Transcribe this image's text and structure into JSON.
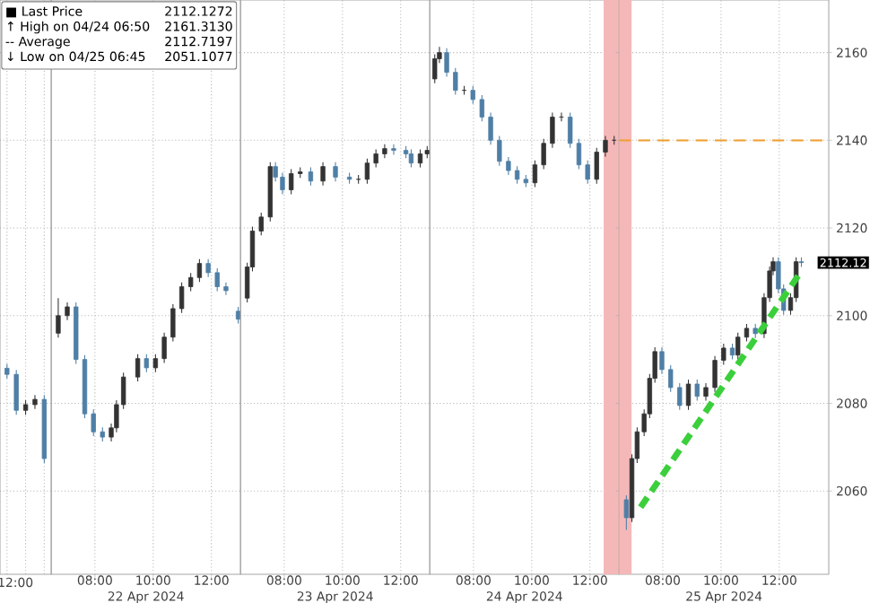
{
  "chart_data": [
    {
      "type": "candlestick",
      "categories": [
        null,
        null,
        null,
        null,
        null
      ],
      "ohlc": [
        [
          2088,
          2089,
          2085.6,
          2086.6
        ],
        [
          2086.6,
          2087.6,
          2077.4,
          2078.4
        ],
        [
          2078.4,
          2080.7,
          2077.4,
          2079.7
        ],
        [
          2079.7,
          2081.9,
          2078.7,
          2080.9
        ],
        [
          2080.9,
          2081.9,
          2066.4,
          2067.4
        ]
      ],
      "colors": [
        "#4f7fa6",
        "#4f7fa6",
        "#333333",
        "#333333",
        "#4f7fa6"
      ],
      "ylim": [
        2041,
        2172
      ],
      "yticks": [
        2060,
        2080,
        2100,
        2120,
        2140,
        2160
      ],
      "tick_labels": false,
      "grid": true,
      "annotations": [
        "12:00",
        "■ Last Price",
        "2112.1272",
        "↑ High on 04/24 06:50",
        "2161.3130",
        "-- Average",
        "2112.7197",
        "↓ Low on 04/25 06:45",
        "2051.1077"
      ]
    },
    {
      "type": "candlestick",
      "xlabel": "22 Apr 2024",
      "x": [
        6.74,
        7.05,
        7.35,
        7.65,
        7.95,
        8.26,
        8.56,
        8.74,
        8.98,
        9.47,
        9.77,
        10.08,
        10.38,
        10.68,
        10.98,
        11.29,
        11.59,
        11.89,
        12.2,
        12.5,
        12.92
      ],
      "ohlc": [
        [
          2096,
          2104,
          2095,
          2100
        ],
        [
          2100,
          2103,
          2099,
          2102
        ],
        [
          2102,
          2103,
          2089,
          2090
        ],
        [
          2090,
          2091,
          2076.6,
          2077.6
        ],
        [
          2077.6,
          2078.6,
          2072.5,
          2073.5
        ],
        [
          2073.5,
          2074.5,
          2071.3,
          2072.3
        ],
        [
          2072.3,
          2075.4,
          2071.3,
          2074.4
        ],
        [
          2074.4,
          2080.7,
          2073.4,
          2079.7
        ],
        [
          2079.7,
          2087,
          2078.7,
          2086
        ],
        [
          2086,
          2091.2,
          2085,
          2090.2
        ],
        [
          2090.2,
          2091.2,
          2087.1,
          2088.1
        ],
        [
          2088.1,
          2091.2,
          2087.1,
          2090.2
        ],
        [
          2090.2,
          2096.1,
          2089.2,
          2095.1
        ],
        [
          2095.1,
          2102.6,
          2094.1,
          2101.6
        ],
        [
          2101.6,
          2107.6,
          2100.6,
          2106.6
        ],
        [
          2106.6,
          2109.7,
          2105.6,
          2108.7
        ],
        [
          2108.7,
          2112.9,
          2107.7,
          2111.9
        ],
        [
          2111.9,
          2112.9,
          2108.8,
          2109.8
        ],
        [
          2109.8,
          2110.8,
          2105.6,
          2106.6
        ],
        [
          2106.6,
          2107.6,
          2104.7,
          2105.7
        ],
        [
          2101,
          2102,
          2098.2,
          2099.2
        ]
      ],
      "colors": [
        "#333333",
        "#333333",
        "#4f7fa6",
        "#4f7fa6",
        "#4f7fa6",
        "#4f7fa6",
        "#333333",
        "#333333",
        "#333333",
        "#333333",
        "#4f7fa6",
        "#333333",
        "#333333",
        "#333333",
        "#333333",
        "#333333",
        "#333333",
        "#4f7fa6",
        "#4f7fa6",
        "#4f7fa6",
        "#4f7fa6"
      ],
      "xlim": [
        6.5,
        13
      ],
      "ylim": [
        2041,
        2172
      ],
      "xticks": [
        {
          "value": 8,
          "label": "08:00"
        },
        {
          "value": 10,
          "label": "10:00"
        },
        {
          "value": 12,
          "label": "12:00"
        }
      ],
      "yticks": [
        2060,
        2080,
        2100,
        2120,
        2140,
        2160
      ],
      "tick_labels": "x",
      "grid": true
    },
    {
      "type": "candlestick",
      "xlabel": "23 Apr 2024",
      "x": [
        6.73,
        6.91,
        7.21,
        7.52,
        7.7,
        7.94,
        8.24,
        8.55,
        8.91,
        9.33,
        9.76,
        10.24,
        10.55,
        10.85,
        11.15,
        11.45,
        11.76,
        12.18,
        12.36,
        12.67,
        12.91
      ],
      "ohlc": [
        [
          2104,
          2112.1,
          2103,
          2111.1
        ],
        [
          2111.1,
          2120.3,
          2110.1,
          2119.3
        ],
        [
          2119.3,
          2123.5,
          2118.3,
          2122.5
        ],
        [
          2122.5,
          2135,
          2121.5,
          2134
        ],
        [
          2134,
          2135,
          2130.6,
          2131.6
        ],
        [
          2131.6,
          2132.6,
          2127.7,
          2128.7
        ],
        [
          2128.7,
          2133.4,
          2127.7,
          2132.4
        ],
        [
          2132.4,
          2133.8,
          2131.4,
          2132.8
        ],
        [
          2132.8,
          2133.8,
          2129.7,
          2130.7
        ],
        [
          2130.7,
          2135,
          2129.7,
          2134
        ],
        [
          2134,
          2135,
          2130.6,
          2131.6
        ],
        [
          2131.6,
          2132.6,
          2130.1,
          2131.1
        ],
        [
          2131.1,
          2132.1,
          2130.1,
          2131.1
        ],
        [
          2131.1,
          2135.8,
          2130.1,
          2134.8
        ],
        [
          2134.8,
          2137.9,
          2133.8,
          2136.9
        ],
        [
          2136.9,
          2139.1,
          2135.9,
          2138.1
        ],
        [
          2138.1,
          2139.1,
          2136.7,
          2137.7
        ],
        [
          2137.7,
          2138.7,
          2135.9,
          2136.9
        ],
        [
          2136.9,
          2137.9,
          2133.8,
          2134.8
        ],
        [
          2134.8,
          2137.9,
          2133.8,
          2136.9
        ],
        [
          2136.9,
          2138.7,
          2135.9,
          2137.7
        ]
      ],
      "colors": [
        "#333333",
        "#333333",
        "#333333",
        "#333333",
        "#4f7fa6",
        "#4f7fa6",
        "#333333",
        "#333333",
        "#4f7fa6",
        "#333333",
        "#4f7fa6",
        "#4f7fa6",
        "#333333",
        "#333333",
        "#333333",
        "#333333",
        "#4f7fa6",
        "#4f7fa6",
        "#4f7fa6",
        "#333333",
        "#333333"
      ],
      "xlim": [
        6.5,
        13
      ],
      "ylim": [
        2041,
        2172
      ],
      "xticks": [
        {
          "value": 8,
          "label": "08:00"
        },
        {
          "value": 10,
          "label": "10:00"
        },
        {
          "value": 12,
          "label": "12:00"
        }
      ],
      "yticks": [
        2060,
        2080,
        2100,
        2120,
        2140,
        2160
      ],
      "tick_labels": "x",
      "grid": true
    },
    {
      "type": "candlestick",
      "xlabel": "24 Apr 2024",
      "x": [
        6.67,
        6.83,
        7.08,
        7.38,
        7.68,
        7.98,
        8.29,
        8.59,
        8.89,
        9.2,
        9.5,
        9.8,
        10.11,
        10.41,
        10.71,
        11.02,
        11.32,
        11.62,
        11.92,
        12.23,
        12.53,
        12.83
      ],
      "ohlc": [
        [
          2154,
          2159.6,
          2153,
          2158.6
        ],
        [
          2158.6,
          2161.313,
          2157.6,
          2160
        ],
        [
          2160,
          2161,
          2154.5,
          2155.5
        ],
        [
          2155.5,
          2156.5,
          2150.4,
          2151.4
        ],
        [
          2151.4,
          2152.4,
          2150.4,
          2151.4
        ],
        [
          2151.4,
          2152.4,
          2148.3,
          2149.3
        ],
        [
          2149.3,
          2150.3,
          2144.3,
          2145.3
        ],
        [
          2145.3,
          2146.3,
          2139,
          2140
        ],
        [
          2140,
          2141,
          2134.2,
          2135.2
        ],
        [
          2135.2,
          2136.2,
          2132.1,
          2133.1
        ],
        [
          2133.1,
          2134.1,
          2130.1,
          2131.1
        ],
        [
          2131.1,
          2132.1,
          2129.3,
          2130.3
        ],
        [
          2130.3,
          2135.4,
          2129.3,
          2134.4
        ],
        [
          2134.4,
          2140.3,
          2133.4,
          2139.3
        ],
        [
          2139.3,
          2146.3,
          2138.3,
          2145.3
        ],
        [
          2145.3,
          2146.3,
          2144.3,
          2145.3
        ],
        [
          2145.3,
          2146.3,
          2138.3,
          2139.3
        ],
        [
          2139.3,
          2140.3,
          2133.4,
          2134.4
        ],
        [
          2134.4,
          2135.4,
          2130.1,
          2131.1
        ],
        [
          2131.1,
          2138.3,
          2130.1,
          2137.3
        ],
        [
          2137.3,
          2141,
          2136.3,
          2140
        ],
        [
          2140,
          2141,
          2139,
          2140
        ]
      ],
      "colors": [
        "#333333",
        "#333333",
        "#4f7fa6",
        "#4f7fa6",
        "#333333",
        "#4f7fa6",
        "#4f7fa6",
        "#4f7fa6",
        "#4f7fa6",
        "#4f7fa6",
        "#4f7fa6",
        "#4f7fa6",
        "#333333",
        "#333333",
        "#333333",
        "#333333",
        "#4f7fa6",
        "#4f7fa6",
        "#4f7fa6",
        "#333333",
        "#333333",
        "#333333"
      ],
      "bands": [
        {
          "axis": "x",
          "from": 12.47,
          "to": 13,
          "color": "#f5b8b8"
        }
      ],
      "xlim": [
        6.5,
        13
      ],
      "ylim": [
        2041,
        2172
      ],
      "xticks": [
        {
          "value": 8,
          "label": "08:00"
        },
        {
          "value": 10,
          "label": "10:00"
        },
        {
          "value": 12,
          "label": "12:00"
        }
      ],
      "yticks": [
        2060,
        2080,
        2100,
        2120,
        2140,
        2160
      ],
      "tick_labels": "x",
      "grid": true
    },
    {
      "type": "candlestick",
      "xlabel": "25 Apr 2024",
      "x": [
        6.75,
        6.94,
        7.12,
        7.36,
        7.55,
        7.73,
        7.97,
        8.27,
        8.58,
        8.88,
        9.18,
        9.48,
        9.79,
        10.09,
        10.39,
        10.58,
        10.88,
        11.18,
        11.48,
        11.67,
        11.79,
        11.97,
        12.15,
        12.39,
        12.58,
        12.76
      ],
      "ohlc": [
        [
          2058,
          2059,
          2051.1077,
          2053.9
        ],
        [
          2053.9,
          2068.4,
          2052.9,
          2067.4
        ],
        [
          2067.4,
          2074.5,
          2066.4,
          2073.5
        ],
        [
          2073.5,
          2078.6,
          2072.5,
          2077.6
        ],
        [
          2077.6,
          2086.7,
          2076.6,
          2085.7
        ],
        [
          2085.7,
          2092.8,
          2084.7,
          2091.8
        ],
        [
          2091.8,
          2092.8,
          2086.7,
          2087.7
        ],
        [
          2087.7,
          2088.7,
          2082.6,
          2083.6
        ],
        [
          2083.6,
          2084.6,
          2078.5,
          2079.5
        ],
        [
          2079.5,
          2085.4,
          2078.5,
          2084.4
        ],
        [
          2084.4,
          2085.4,
          2080.6,
          2081.6
        ],
        [
          2081.6,
          2084.6,
          2080.6,
          2083.6
        ],
        [
          2083.6,
          2090.8,
          2082.6,
          2089.8
        ],
        [
          2089.8,
          2093.6,
          2088.8,
          2092.6
        ],
        [
          2092.6,
          2093.6,
          2090,
          2091
        ],
        [
          2091,
          2096.1,
          2090,
          2095.1
        ],
        [
          2095.1,
          2098.1,
          2094.1,
          2097.1
        ],
        [
          2097.1,
          2098.1,
          2094.9,
          2095.9
        ],
        [
          2095.9,
          2105.1,
          2094.9,
          2104.1
        ],
        [
          2104.1,
          2111.2,
          2103.1,
          2110.2
        ],
        [
          2110.2,
          2113.3,
          2109.2,
          2112.3
        ],
        [
          2112.3,
          2113.3,
          2105.1,
          2106.1
        ],
        [
          2106.1,
          2107.1,
          2100.2,
          2101.2
        ],
        [
          2101.2,
          2105.1,
          2100.2,
          2104.1
        ],
        [
          2104.1,
          2113.3,
          2103.1,
          2112.3
        ],
        [
          2112.3,
          2113.3,
          2111.1,
          2112.1
        ]
      ],
      "colors": [
        "#4f7fa6",
        "#333333",
        "#333333",
        "#333333",
        "#333333",
        "#333333",
        "#4f7fa6",
        "#4f7fa6",
        "#4f7fa6",
        "#333333",
        "#4f7fa6",
        "#333333",
        "#333333",
        "#333333",
        "#4f7fa6",
        "#333333",
        "#333333",
        "#4f7fa6",
        "#333333",
        "#333333",
        "#333333",
        "#4f7fa6",
        "#4f7fa6",
        "#333333",
        "#333333",
        "#4f7fa6"
      ],
      "series": [
        {
          "type": "line",
          "x": [
            6.5,
            13.7
          ],
          "values": [
            2140,
            2140
          ],
          "color": "#f0a030",
          "line_style": "dashed"
        },
        {
          "type": "line",
          "x": [
            7.24,
            12.7
          ],
          "values": [
            2056.3,
            2109.6
          ],
          "color": "#3ccf3c",
          "line_style": "dashed"
        }
      ],
      "bands": [
        {
          "axis": "x",
          "from": 6.5,
          "to": 6.93,
          "color": "#f5b8b8"
        }
      ],
      "annotations": [
        "2112.12"
      ],
      "xlim": [
        6.5,
        13.7
      ],
      "ylim": [
        2041,
        2172
      ],
      "xticks": [
        {
          "value": 8,
          "label": "08:00"
        },
        {
          "value": 10,
          "label": "10:00"
        },
        {
          "value": 12,
          "label": "12:00"
        }
      ],
      "yticks": [
        2060,
        2080,
        2100,
        2120,
        2140,
        2160
      ],
      "grid": true
    }
  ]
}
